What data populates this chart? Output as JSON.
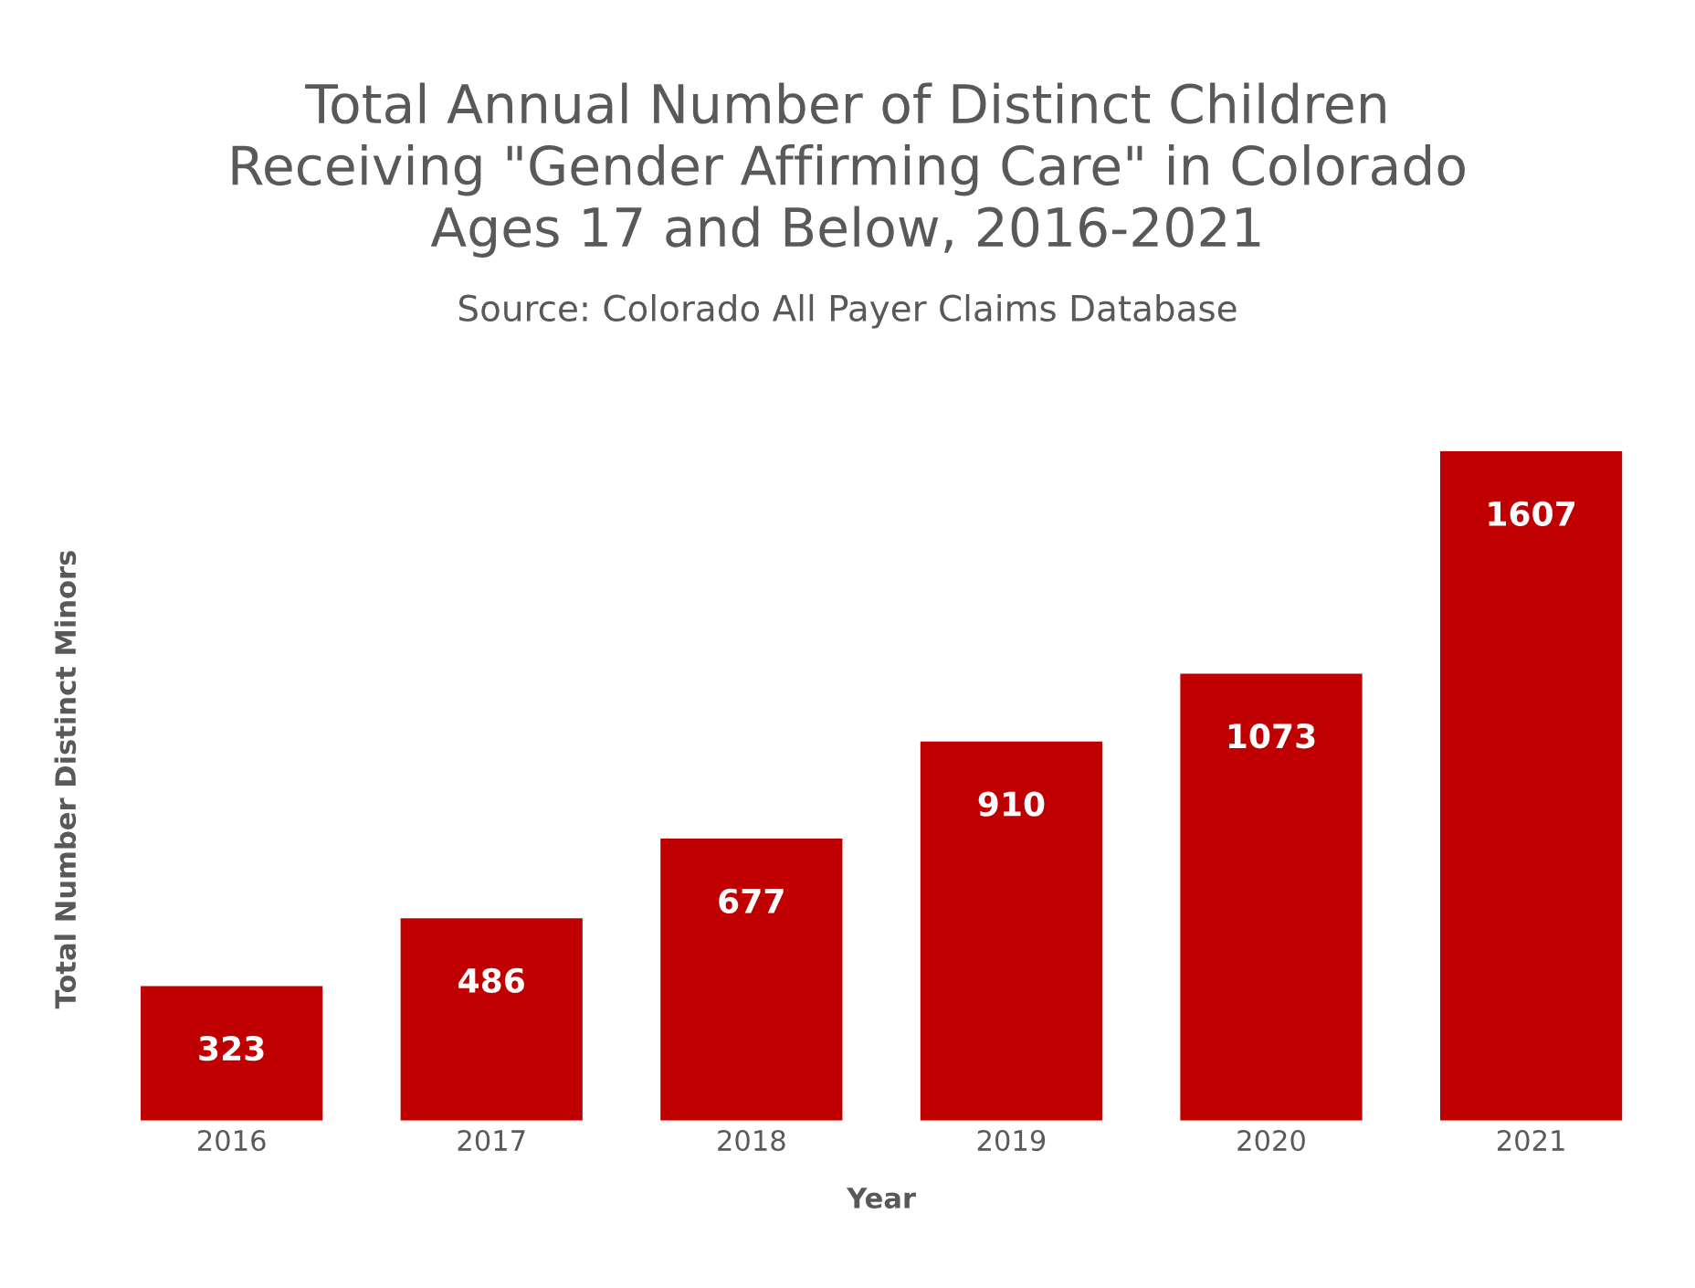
{
  "chart_data": {
    "type": "bar",
    "title": "Total Annual Number of Distinct Children\nReceiving \"Gender Affirming Care\" in Colorado\nAges 17 and Below, 2016-2021",
    "subtitle": "Source: Colorado All Payer Claims Database",
    "xlabel": "Year",
    "ylabel": "Total Number Distinct Minors",
    "categories": [
      "2016",
      "2017",
      "2018",
      "2019",
      "2020",
      "2021"
    ],
    "values": [
      323,
      486,
      677,
      910,
      1073,
      1607
    ],
    "color": "#c00000",
    "data_labels": true,
    "grid": false,
    "legend": false,
    "tick_labels": "x"
  }
}
